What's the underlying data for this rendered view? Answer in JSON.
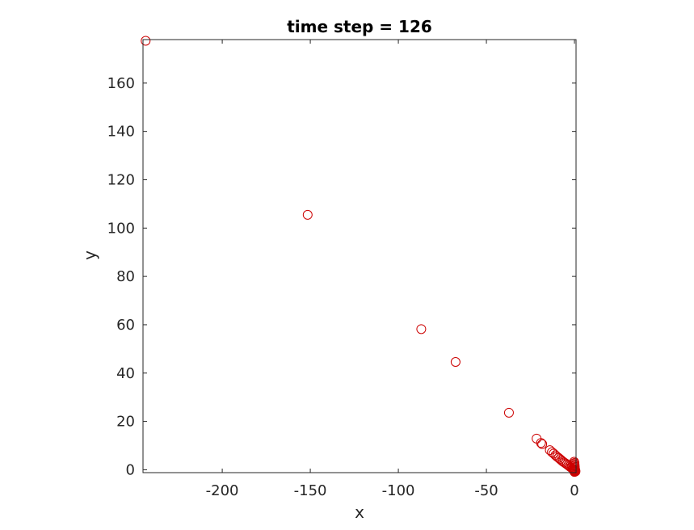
{
  "chart_data": {
    "type": "scatter",
    "title": "time step = 126",
    "xlabel": "x",
    "ylabel": "y",
    "xlim": [
      -245,
      0.9
    ],
    "ylim": [
      -1.2,
      178
    ],
    "grid": false,
    "box": true,
    "marker": "open-circle",
    "marker_color": "#cc0000",
    "xticks": [
      -200,
      -150,
      -100,
      -50,
      0
    ],
    "xtick_labels": [
      "-200",
      "-150",
      "-100",
      "-50",
      "0"
    ],
    "yticks": [
      0,
      20,
      40,
      60,
      80,
      100,
      120,
      140,
      160
    ],
    "ytick_labels": [
      "0",
      "20",
      "40",
      "60",
      "80",
      "100",
      "120",
      "140",
      "160"
    ],
    "points": [
      {
        "x": -243.5,
        "y": 177.5
      },
      {
        "x": -151.5,
        "y": 105.5
      },
      {
        "x": -87.0,
        "y": 58.2
      },
      {
        "x": -67.5,
        "y": 44.6
      },
      {
        "x": -37.2,
        "y": 23.6
      },
      {
        "x": -21.5,
        "y": 12.9
      },
      {
        "x": -19.0,
        "y": 11.1
      },
      {
        "x": -18.3,
        "y": 10.6
      },
      {
        "x": -14.0,
        "y": 8.1
      },
      {
        "x": -12.8,
        "y": 7.3
      },
      {
        "x": -11.8,
        "y": 6.7
      },
      {
        "x": -10.8,
        "y": 6.0
      },
      {
        "x": -9.9,
        "y": 5.4
      },
      {
        "x": -9.0,
        "y": 4.9
      },
      {
        "x": -8.2,
        "y": 4.4
      },
      {
        "x": -7.4,
        "y": 3.9
      },
      {
        "x": -6.6,
        "y": 3.4
      },
      {
        "x": -5.8,
        "y": 3.0
      },
      {
        "x": -5.0,
        "y": 2.6
      },
      {
        "x": -4.2,
        "y": 2.2
      },
      {
        "x": -3.5,
        "y": 1.8
      },
      {
        "x": -2.8,
        "y": 1.4
      },
      {
        "x": -2.1,
        "y": 1.0
      },
      {
        "x": -1.5,
        "y": 0.7
      },
      {
        "x": -1.0,
        "y": 0.4
      },
      {
        "x": -0.6,
        "y": 0.2
      },
      {
        "x": -0.2,
        "y": 3.3
      },
      {
        "x": 0.0,
        "y": 2.8
      },
      {
        "x": -0.3,
        "y": 2.4
      },
      {
        "x": 0.1,
        "y": 2.0
      },
      {
        "x": -0.1,
        "y": 1.6
      },
      {
        "x": 0.2,
        "y": 1.2
      },
      {
        "x": 0.0,
        "y": 0.8
      },
      {
        "x": -0.4,
        "y": 0.4
      },
      {
        "x": 0.3,
        "y": 0.1
      },
      {
        "x": -0.2,
        "y": -0.1
      },
      {
        "x": 0.1,
        "y": -0.3
      },
      {
        "x": 0.4,
        "y": -0.5
      },
      {
        "x": -0.1,
        "y": -0.6
      },
      {
        "x": 0.2,
        "y": -0.8
      },
      {
        "x": 0.5,
        "y": -0.2
      },
      {
        "x": -0.5,
        "y": 0.0
      },
      {
        "x": 0.6,
        "y": -0.7
      },
      {
        "x": 0.0,
        "y": -0.9
      },
      {
        "x": 0.3,
        "y": -0.4
      }
    ]
  }
}
